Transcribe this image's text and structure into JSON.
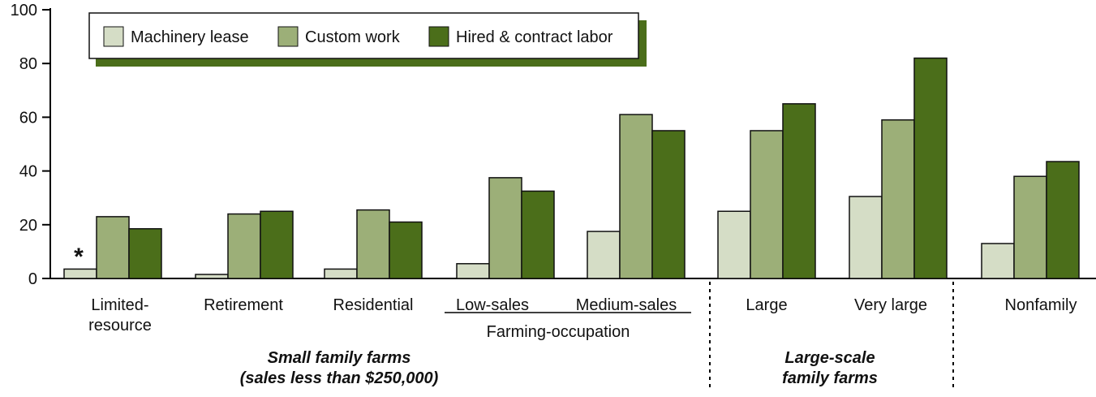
{
  "chart_data": {
    "type": "bar",
    "categories": [
      "Limited-\nresource",
      "Retirement",
      "Residential",
      "Low-sales",
      "Medium-sales",
      "Large",
      "Very large",
      "Nonfamily"
    ],
    "series": [
      {
        "name": "Machinery lease",
        "color": "#d5ddc6",
        "values": [
          3.5,
          1.5,
          3.5,
          5.5,
          17.5,
          25,
          30.5,
          13
        ]
      },
      {
        "name": "Custom work",
        "color": "#9caf78",
        "values": [
          23,
          24,
          25.5,
          37.5,
          61,
          55,
          59,
          38
        ]
      },
      {
        "name": "Hired & contract labor",
        "color": "#4b6e1a",
        "values": [
          18.5,
          25,
          21,
          32.5,
          55,
          65,
          82,
          43.5
        ]
      }
    ],
    "ylim": [
      0,
      100
    ],
    "yticks": [
      0,
      20,
      40,
      60,
      80,
      100
    ],
    "grid": false,
    "legend": "top-left",
    "annotations": [
      "*",
      "Farming-occupation",
      "Small family farms",
      "(sales less than $250,000)",
      "Large-scale",
      "family farms"
    ]
  }
}
